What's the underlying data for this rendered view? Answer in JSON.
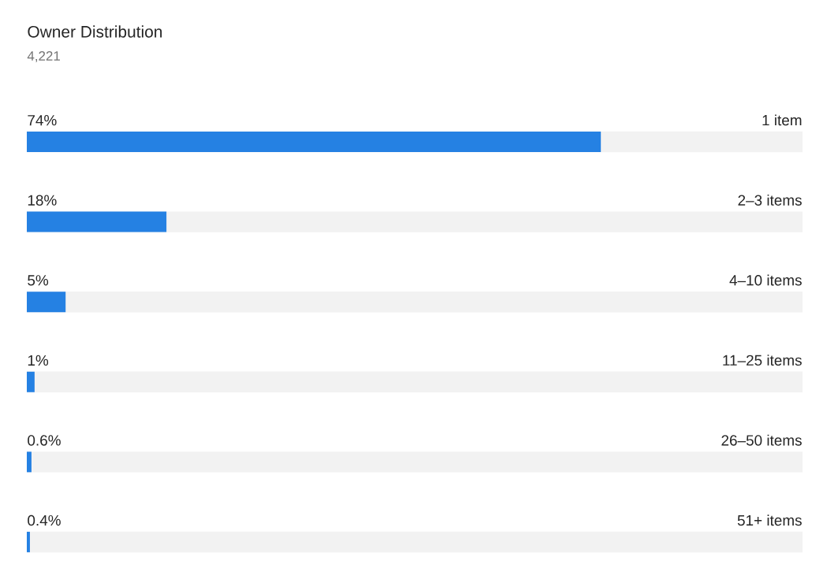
{
  "chart_data": {
    "type": "bar",
    "orientation": "horizontal",
    "title": "Owner Distribution",
    "subtitle": "4,221",
    "categories": [
      "1 item",
      "2–3 items",
      "4–10 items",
      "11–25 items",
      "26–50 items",
      "51+ items"
    ],
    "values": [
      74,
      18,
      5,
      1,
      0.6,
      0.4
    ],
    "value_labels": [
      "74%",
      "18%",
      "5%",
      "1%",
      "0.6%",
      "0.4%"
    ],
    "color": "#2581e3",
    "xlim": [
      0,
      100
    ]
  }
}
